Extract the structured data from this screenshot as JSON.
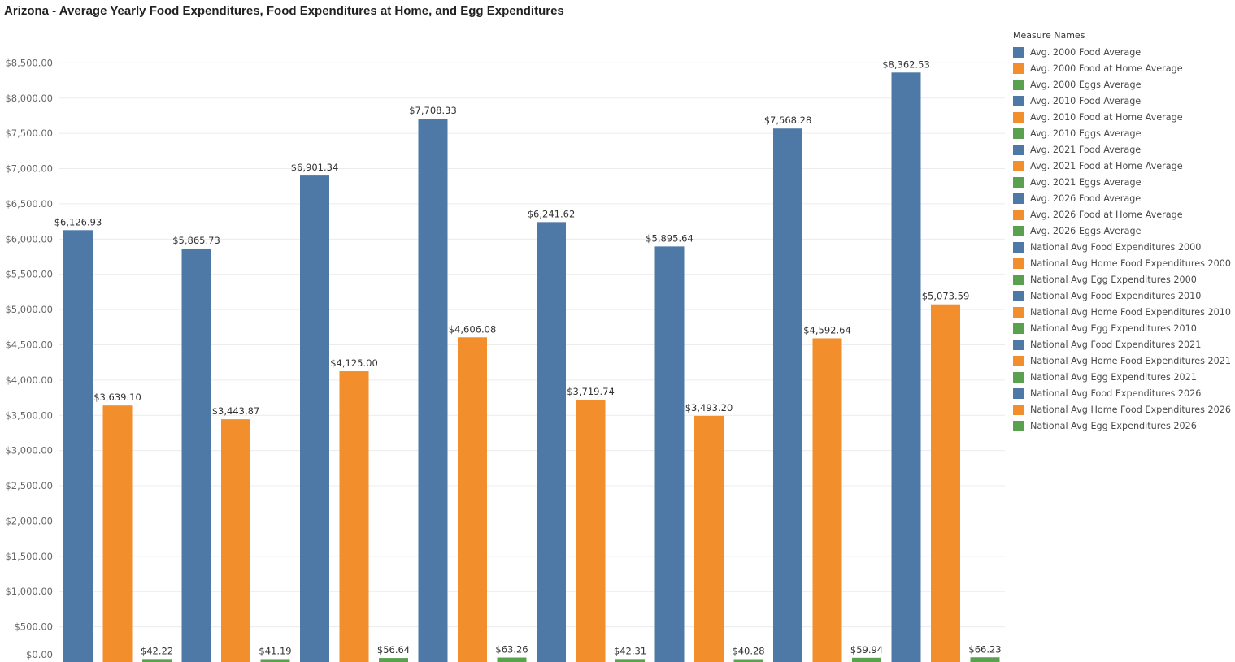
{
  "chart_data": {
    "type": "bar",
    "title": "Arizona - Average Yearly Food Expenditures, Food Expenditures at Home, and Egg Expenditures",
    "ylim": [
      0,
      8800
    ],
    "y_ticks": [
      0,
      500,
      1000,
      1500,
      2000,
      2500,
      3000,
      3500,
      4000,
      4500,
      5000,
      5500,
      6000,
      6500,
      7000,
      7500,
      8000,
      8500
    ],
    "y_tick_labels": [
      "$0.00",
      "$500.00",
      "$1,000.00",
      "$1,500.00",
      "$2,000.00",
      "$2,500.00",
      "$3,000.00",
      "$3,500.00",
      "$4,000.00",
      "$4,500.00",
      "$5,000.00",
      "$5,500.00",
      "$6,000.00",
      "$6,500.00",
      "$7,000.00",
      "$7,500.00",
      "$8,000.00",
      "$8,500.00"
    ],
    "grid": true,
    "legend_position": "right",
    "legend_title": "Measure Names",
    "bars": [
      {
        "value": 6126.93,
        "label": "$6,126.93",
        "kind": "food"
      },
      {
        "value": 3639.1,
        "label": "$3,639.10",
        "kind": "home"
      },
      {
        "value": 42.22,
        "label": "$42.22",
        "kind": "egg"
      },
      {
        "value": 5865.73,
        "label": "$5,865.73",
        "kind": "food"
      },
      {
        "value": 3443.87,
        "label": "$3,443.87",
        "kind": "home"
      },
      {
        "value": 41.19,
        "label": "$41.19",
        "kind": "egg"
      },
      {
        "value": 6901.34,
        "label": "$6,901.34",
        "kind": "food"
      },
      {
        "value": 4125.0,
        "label": "$4,125.00",
        "kind": "home"
      },
      {
        "value": 56.64,
        "label": "$56.64",
        "kind": "egg"
      },
      {
        "value": 7708.33,
        "label": "$7,708.33",
        "kind": "food"
      },
      {
        "value": 4606.08,
        "label": "$4,606.08",
        "kind": "home"
      },
      {
        "value": 63.26,
        "label": "$63.26",
        "kind": "egg"
      },
      {
        "value": 6241.62,
        "label": "$6,241.62",
        "kind": "food"
      },
      {
        "value": 3719.74,
        "label": "$3,719.74",
        "kind": "home"
      },
      {
        "value": 42.31,
        "label": "$42.31",
        "kind": "egg"
      },
      {
        "value": 5895.64,
        "label": "$5,895.64",
        "kind": "food"
      },
      {
        "value": 3493.2,
        "label": "$3,493.20",
        "kind": "home"
      },
      {
        "value": 40.28,
        "label": "$40.28",
        "kind": "egg"
      },
      {
        "value": 7568.28,
        "label": "$7,568.28",
        "kind": "food"
      },
      {
        "value": 4592.64,
        "label": "$4,592.64",
        "kind": "home"
      },
      {
        "value": 59.94,
        "label": "$59.94",
        "kind": "egg"
      },
      {
        "value": 8362.53,
        "label": "$8,362.53",
        "kind": "food"
      },
      {
        "value": 5073.59,
        "label": "$5,073.59",
        "kind": "home"
      },
      {
        "value": 66.23,
        "label": "$66.23",
        "kind": "egg"
      }
    ],
    "colors": {
      "food": "#4e79a7",
      "home": "#f28e2b",
      "egg": "#59a14f"
    },
    "legend": [
      {
        "name": "Avg. 2000 Food Average",
        "kind": "food"
      },
      {
        "name": "Avg. 2000 Food at Home Average",
        "kind": "home"
      },
      {
        "name": "Avg. 2000 Eggs Average",
        "kind": "egg"
      },
      {
        "name": "Avg. 2010 Food Average",
        "kind": "food"
      },
      {
        "name": "Avg. 2010 Food at Home Average",
        "kind": "home"
      },
      {
        "name": "Avg. 2010 Eggs Average",
        "kind": "egg"
      },
      {
        "name": "Avg. 2021 Food Average",
        "kind": "food"
      },
      {
        "name": "Avg. 2021 Food at Home Average",
        "kind": "home"
      },
      {
        "name": "Avg. 2021 Eggs Average",
        "kind": "egg"
      },
      {
        "name": "Avg. 2026 Food Average",
        "kind": "food"
      },
      {
        "name": "Avg. 2026 Food at Home Average",
        "kind": "home"
      },
      {
        "name": "Avg. 2026 Eggs Average",
        "kind": "egg"
      },
      {
        "name": "National Avg Food Expenditures 2000",
        "kind": "food"
      },
      {
        "name": "National Avg Home Food Expenditures 2000",
        "kind": "home"
      },
      {
        "name": "National Avg Egg Expenditures 2000",
        "kind": "egg"
      },
      {
        "name": "National Avg Food Expenditures 2010",
        "kind": "food"
      },
      {
        "name": "National Avg Home Food Expenditures 2010",
        "kind": "home"
      },
      {
        "name": "National Avg Egg Expenditures 2010",
        "kind": "egg"
      },
      {
        "name": "National Avg Food Expenditures 2021",
        "kind": "food"
      },
      {
        "name": "National Avg Home Food Expenditures 2021",
        "kind": "home"
      },
      {
        "name": "National Avg Egg Expenditures 2021",
        "kind": "egg"
      },
      {
        "name": "National Avg Food Expenditures 2026",
        "kind": "food"
      },
      {
        "name": "National Avg Home Food Expenditures 2026",
        "kind": "home"
      },
      {
        "name": "National Avg Egg Expenditures 2026",
        "kind": "egg"
      }
    ]
  }
}
